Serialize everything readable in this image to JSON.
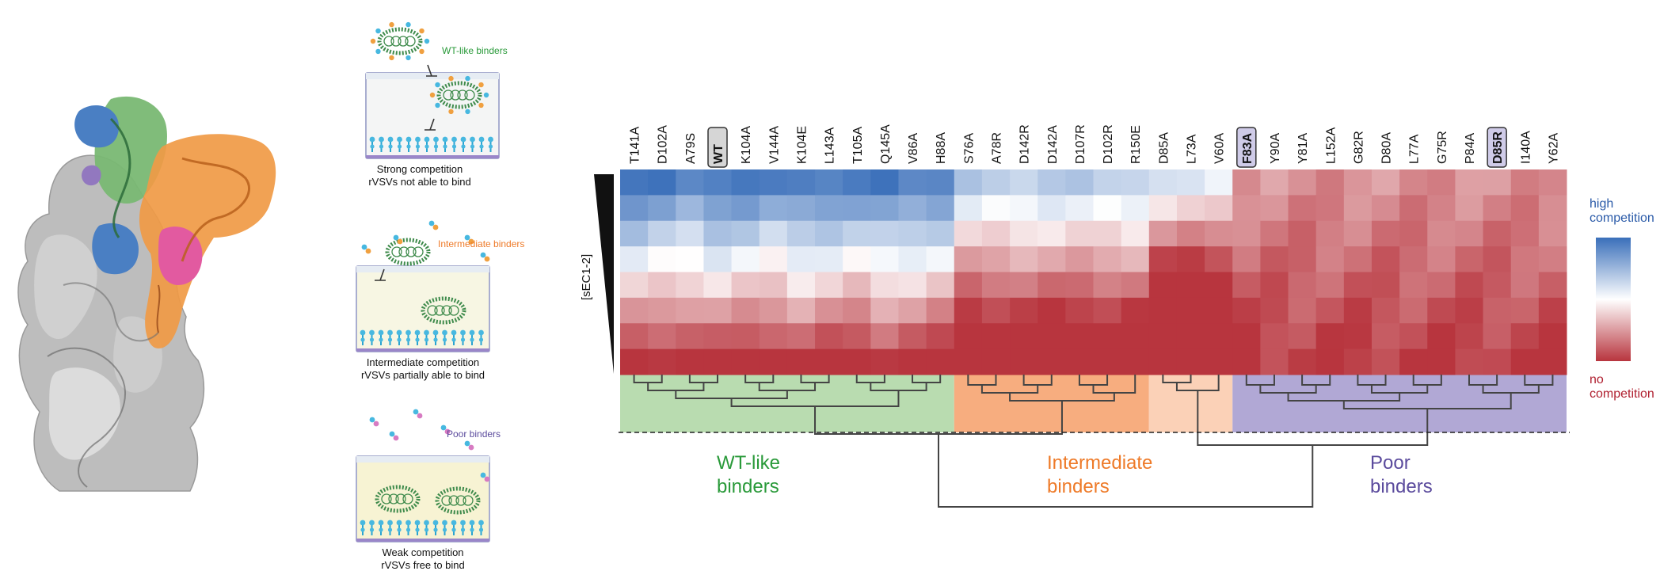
{
  "panel_b": {
    "wells": [
      {
        "key": "strong",
        "label": "WT-like binders",
        "label_color": "#2a9a3a",
        "caption1": "Strong competition",
        "caption2": "rVSVs not able to bind",
        "bg": "#f4f5f5"
      },
      {
        "key": "intermediate",
        "label": "Intermediate binders",
        "label_color": "#ee7a28",
        "caption1": "Intermediate competition",
        "caption2": "rVSVs partially able to bind",
        "bg": "#f7f6e3"
      },
      {
        "key": "weak",
        "label": "Poor binders",
        "label_color": "#5b4b9d",
        "caption1": "Weak competition",
        "caption2": "rVSVs free to bind",
        "bg": "#f7f3d3"
      }
    ]
  },
  "heatmap": {
    "y_label": "[sEC1-2]",
    "columns": [
      "T141A",
      "D102A",
      "A79S",
      "WT",
      "K104A",
      "V144A",
      "K104E",
      "L143A",
      "T105A",
      "Q145A",
      "V86A",
      "H88A",
      "S76A",
      "A78R",
      "D142R",
      "D142A",
      "D107R",
      "D102R",
      "R150E",
      "D85A",
      "L73A",
      "V60A",
      "F83A",
      "Y90A",
      "Y81A",
      "L152A",
      "G82R",
      "D80A",
      "L77A",
      "G75R",
      "P84A",
      "D85R",
      "I140A",
      "Y62A"
    ],
    "boxed_columns": {
      "WT": "#d6d6d6",
      "F83A": "#cfcbe8",
      "D85R": "#cfcbe8"
    },
    "rows": 8,
    "legend": {
      "high": "high\ncompetition",
      "low": "no\ncompetition",
      "high_color": "#2a5aa8",
      "low_color": "#b02030",
      "scale_top": "#3a6fba",
      "scale_mid": "#ffffff",
      "scale_bottom": "#b8353e"
    },
    "groups": [
      {
        "name": "WT-like binders",
        "line1": "WT-like",
        "line2": "binders",
        "color": "#b9dcb0",
        "text_color": "#2a9a3a",
        "from": 0,
        "to": 11
      },
      {
        "name": "Intermediate binders",
        "line1": "Intermediate",
        "line2": "binders",
        "color": "#f7ad7f",
        "text_color": "#ee7a28",
        "from": 12,
        "to": 18
      },
      {
        "name": "Intermediate binders (light)",
        "line1": "",
        "line2": "",
        "color": "#fbd1b7",
        "text_color": "#ee7a28",
        "from": 19,
        "to": 21
      },
      {
        "name": "Poor binders",
        "line1": "Poor",
        "line2": "binders",
        "color": "#b1a8d5",
        "text_color": "#5b4b9d",
        "from": 22,
        "to": 33
      }
    ]
  }
}
